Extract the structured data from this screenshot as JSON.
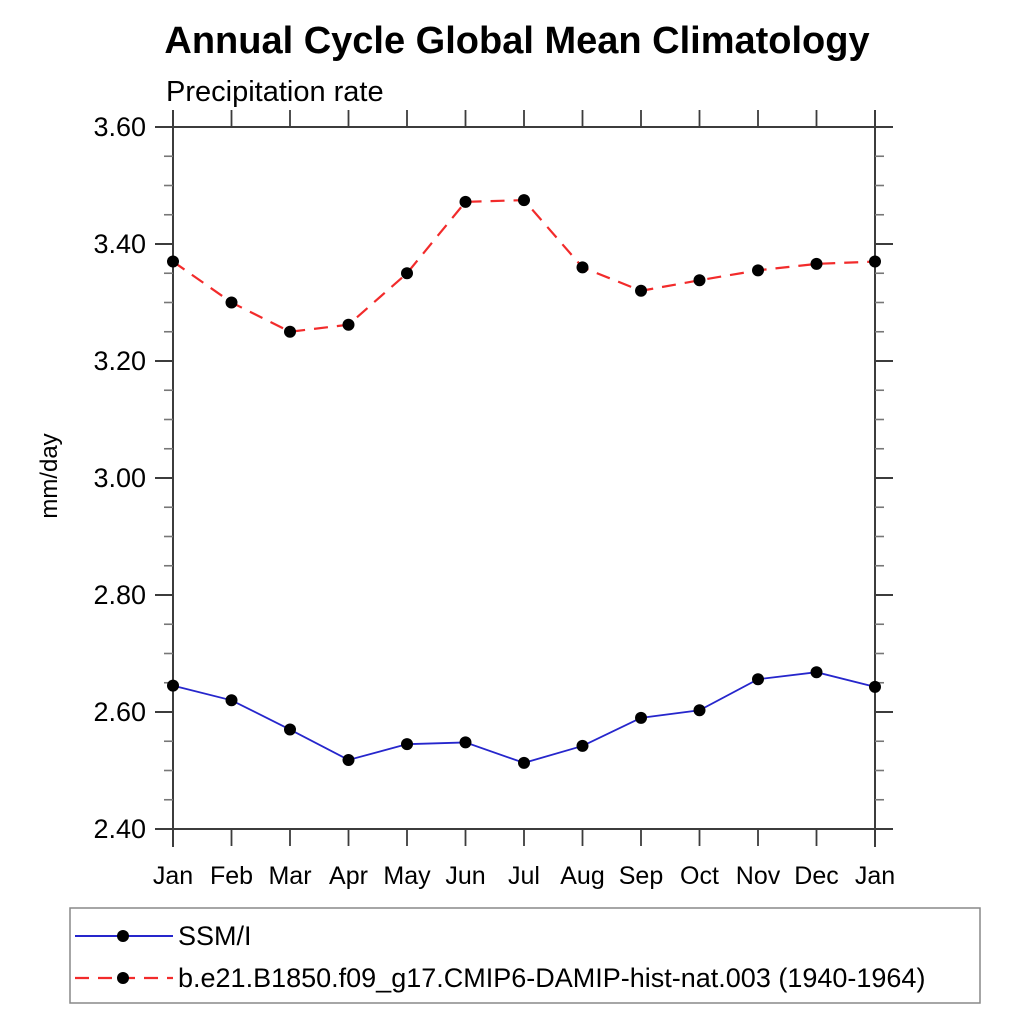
{
  "chart_data": {
    "type": "line",
    "title": "Annual Cycle Global Mean Climatology",
    "subtitle": "Precipitation rate",
    "ylabel": "mm/day",
    "categories": [
      "Jan",
      "Feb",
      "Mar",
      "Apr",
      "May",
      "Jun",
      "Jul",
      "Aug",
      "Sep",
      "Oct",
      "Nov",
      "Dec",
      "Jan"
    ],
    "ylim": [
      2.4,
      3.6
    ],
    "ytick_major": 0.2,
    "ytick_minor": 0.05,
    "grid": "off",
    "legend_position": "bottom-left-box",
    "series": [
      {
        "name": "SSM/I",
        "line_style": "solid",
        "color": "#2626cc",
        "marker": "filled-circle",
        "marker_color": "#000000",
        "values": [
          2.645,
          2.62,
          2.57,
          2.518,
          2.545,
          2.548,
          2.513,
          2.542,
          2.59,
          2.603,
          2.656,
          2.668,
          2.643
        ]
      },
      {
        "name": "b.e21.B1850.f09_g17.CMIP6-DAMIP-hist-nat.003 (1940-1964)",
        "line_style": "dashed",
        "color": "#f22b2b",
        "marker": "filled-circle",
        "marker_color": "#000000",
        "values": [
          3.37,
          3.3,
          3.25,
          3.262,
          3.35,
          3.472,
          3.475,
          3.36,
          3.32,
          3.338,
          3.355,
          3.366,
          3.37
        ]
      }
    ],
    "axis_color": "#3c3c3c",
    "minor_tick_color": "#777777",
    "legend_border_color": "#888888"
  }
}
